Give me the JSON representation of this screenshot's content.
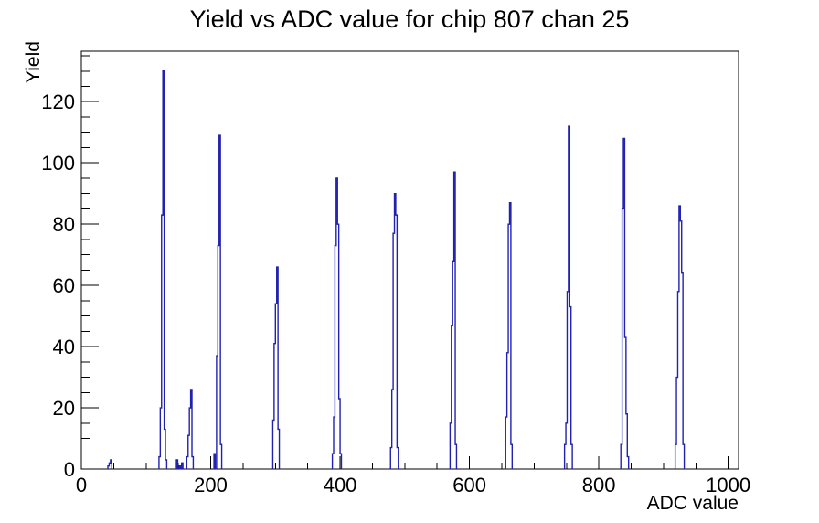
{
  "page": {
    "background": "#ffffff",
    "frame_color": "#000000",
    "text_color": "#000000"
  },
  "chart_data": {
    "type": "bar",
    "title": "Yield vs ADC value for chip 807 chan 25",
    "xlabel": "ADC value",
    "ylabel": "Yield",
    "xlim": [
      0,
      1016
    ],
    "ylim": [
      0,
      136.5
    ],
    "grid": false,
    "legend": false,
    "line_color": "#2121b0",
    "bin_width": 2,
    "x_major_ticks": [
      0,
      200,
      400,
      600,
      800,
      1000
    ],
    "x_tick_labels": [
      "0",
      "200",
      "400",
      "600",
      "800",
      "1000"
    ],
    "x_minor_step": 50,
    "y_major_ticks": [
      0,
      20,
      40,
      60,
      80,
      100,
      120
    ],
    "y_tick_labels": [
      "0",
      "20",
      "40",
      "60",
      "80",
      "100",
      "120"
    ],
    "y_minor_step": 5,
    "bins": [
      [
        42,
        1
      ],
      [
        44,
        2
      ],
      [
        46,
        3
      ],
      [
        121,
        4
      ],
      [
        123,
        20
      ],
      [
        125,
        83
      ],
      [
        127,
        130
      ],
      [
        129,
        13
      ],
      [
        131,
        3
      ],
      [
        148,
        3
      ],
      [
        152,
        1
      ],
      [
        156,
        2
      ],
      [
        164,
        4
      ],
      [
        166,
        11
      ],
      [
        168,
        20
      ],
      [
        170,
        26
      ],
      [
        172,
        4
      ],
      [
        206,
        5
      ],
      [
        210,
        37
      ],
      [
        212,
        73
      ],
      [
        214,
        109
      ],
      [
        216,
        8
      ],
      [
        297,
        16
      ],
      [
        299,
        41
      ],
      [
        301,
        54
      ],
      [
        303,
        66
      ],
      [
        305,
        13
      ],
      [
        389,
        5
      ],
      [
        391,
        17
      ],
      [
        393,
        73
      ],
      [
        395,
        95
      ],
      [
        397,
        80
      ],
      [
        399,
        23
      ],
      [
        401,
        5
      ],
      [
        479,
        7
      ],
      [
        481,
        26
      ],
      [
        483,
        77
      ],
      [
        485,
        90
      ],
      [
        487,
        83
      ],
      [
        489,
        7
      ],
      [
        571,
        15
      ],
      [
        573,
        47
      ],
      [
        575,
        68
      ],
      [
        577,
        97
      ],
      [
        579,
        8
      ],
      [
        657,
        17
      ],
      [
        659,
        38
      ],
      [
        661,
        80
      ],
      [
        663,
        87
      ],
      [
        665,
        8
      ],
      [
        748,
        8
      ],
      [
        750,
        15
      ],
      [
        752,
        58
      ],
      [
        754,
        112
      ],
      [
        756,
        53
      ],
      [
        758,
        8
      ],
      [
        835,
        8
      ],
      [
        837,
        85
      ],
      [
        839,
        108
      ],
      [
        841,
        43
      ],
      [
        843,
        18
      ],
      [
        845,
        4
      ],
      [
        919,
        8
      ],
      [
        921,
        30
      ],
      [
        923,
        58
      ],
      [
        925,
        86
      ],
      [
        927,
        81
      ],
      [
        929,
        64
      ],
      [
        931,
        8
      ]
    ]
  }
}
